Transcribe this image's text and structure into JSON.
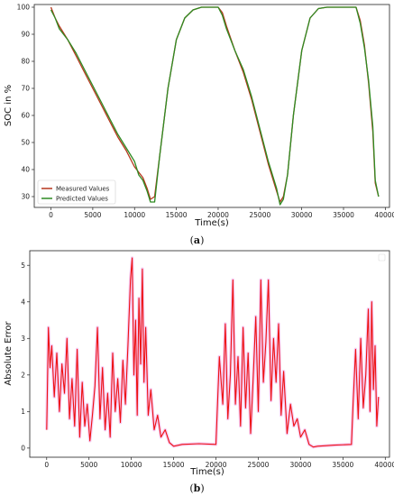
{
  "chart_data": [
    {
      "panel": "(a)",
      "type": "line",
      "xlabel": "Time(s)",
      "ylabel": "SOC in %",
      "xlim": [
        -2000,
        40500
      ],
      "ylim": [
        26,
        101
      ],
      "xticks": [
        0,
        5000,
        10000,
        15000,
        20000,
        25000,
        30000,
        35000,
        40000
      ],
      "yticks": [
        30,
        40,
        50,
        60,
        70,
        80,
        90,
        100
      ],
      "legend_position": "lower-left",
      "series": [
        {
          "name": "Measured Values",
          "color": "#b5361c",
          "x": [
            0,
            500,
            1000,
            2000,
            3000,
            4000,
            5000,
            6000,
            7000,
            8000,
            9000,
            10000,
            10500,
            11000,
            11500,
            11900,
            12400,
            13000,
            14000,
            15000,
            16000,
            17000,
            18000,
            19000,
            20000,
            20500,
            21000,
            22000,
            23000,
            24000,
            25000,
            26000,
            27000,
            27400,
            27800,
            28300,
            29000,
            30000,
            31000,
            32000,
            33000,
            34000,
            35000,
            36000,
            36500,
            37000,
            37500,
            38000,
            38500,
            38800,
            39200
          ],
          "y": [
            100,
            96,
            93,
            88,
            82,
            76,
            70,
            64,
            58,
            52,
            47,
            41,
            39,
            37,
            33,
            29,
            30,
            45,
            70,
            88,
            96,
            99,
            100,
            100,
            100,
            98,
            93,
            84,
            76,
            66,
            54,
            42,
            32,
            28,
            30,
            38,
            60,
            84,
            96,
            99.5,
            100,
            100,
            100,
            100,
            100,
            95,
            86,
            72,
            54,
            35,
            30
          ]
        },
        {
          "name": "Predicted Values",
          "color": "#2e8b22",
          "x": [
            0,
            500,
            1000,
            2000,
            3000,
            4000,
            5000,
            6000,
            7000,
            8000,
            9000,
            10000,
            10500,
            11000,
            11500,
            11900,
            12400,
            13000,
            14000,
            15000,
            16000,
            17000,
            18000,
            19000,
            20000,
            20500,
            21000,
            22000,
            23000,
            24000,
            25000,
            26000,
            27000,
            27400,
            27800,
            28300,
            29000,
            30000,
            31000,
            32000,
            33000,
            34000,
            35000,
            36000,
            36500,
            37000,
            37500,
            38000,
            38500,
            38800,
            39200
          ],
          "y": [
            99,
            96,
            92,
            88,
            83,
            77,
            71,
            65,
            59,
            53,
            48,
            43,
            38,
            36,
            32,
            28,
            28,
            45,
            70,
            88,
            96,
            99,
            100,
            100,
            100,
            97,
            92,
            84,
            77,
            67,
            55,
            43,
            33,
            27,
            29,
            38,
            60,
            84,
            96,
            99.5,
            100,
            100,
            100,
            100,
            100,
            94,
            85,
            73,
            56,
            36,
            30
          ]
        }
      ]
    },
    {
      "panel": "(b)",
      "type": "line",
      "xlabel": "Time(s)",
      "ylabel": "Absolute Error",
      "xlim": [
        -2000,
        40500
      ],
      "ylim": [
        -0.25,
        5.4
      ],
      "xticks": [
        0,
        5000,
        10000,
        15000,
        20000,
        25000,
        30000,
        35000,
        40000
      ],
      "yticks": [
        0,
        1,
        2,
        3,
        4,
        5
      ],
      "series": [
        {
          "color": "#ee1111",
          "x": [
            0,
            200,
            400,
            600,
            900,
            1200,
            1500,
            1800,
            2100,
            2400,
            2700,
            3000,
            3300,
            3600,
            3900,
            4200,
            4500,
            4800,
            5100,
            5400,
            5700,
            6000,
            6300,
            6600,
            6900,
            7200,
            7500,
            7800,
            8100,
            8400,
            8700,
            9000,
            9300,
            9600,
            9900,
            10100,
            10300,
            10500,
            10700,
            10900,
            11100,
            11300,
            11500,
            11700,
            12000,
            12300,
            12700,
            13100,
            13500,
            14000,
            14500,
            15000,
            16000,
            18000,
            20000,
            20400,
            20800,
            21100,
            21400,
            21700,
            22000,
            22300,
            22600,
            22900,
            23200,
            23500,
            23800,
            24100,
            24400,
            24700,
            25000,
            25300,
            25600,
            25900,
            26200,
            26500,
            26800,
            27100,
            27400,
            27700,
            28000,
            28400,
            28800,
            29200,
            29600,
            30000,
            30500,
            31000,
            31500,
            32000,
            34000,
            36000,
            36200,
            36500,
            36800,
            37100,
            37400,
            37700,
            38000,
            38200,
            38400,
            38600,
            38800,
            39000,
            39200
          ],
          "y": [
            0.5,
            3.3,
            2.2,
            2.8,
            1.4,
            2.6,
            1.0,
            2.3,
            1.5,
            3.0,
            0.8,
            1.9,
            0.6,
            2.7,
            0.3,
            1.8,
            0.6,
            1.2,
            0.2,
            0.9,
            1.7,
            3.3,
            0.8,
            2.2,
            0.5,
            1.5,
            0.3,
            2.6,
            1.0,
            1.9,
            0.7,
            2.4,
            1.2,
            2.8,
            4.6,
            5.2,
            2.0,
            3.5,
            0.9,
            4.1,
            2.3,
            4.9,
            1.8,
            3.3,
            0.9,
            1.6,
            0.5,
            0.9,
            0.3,
            0.5,
            0.15,
            0.05,
            0.1,
            0.12,
            0.1,
            2.5,
            1.2,
            3.4,
            0.8,
            2.0,
            4.6,
            1.2,
            2.5,
            0.6,
            3.3,
            1.1,
            2.6,
            0.4,
            1.9,
            3.6,
            1.0,
            4.6,
            1.8,
            2.9,
            4.6,
            1.3,
            3.0,
            1.8,
            3.4,
            0.9,
            2.1,
            0.4,
            1.2,
            0.6,
            0.8,
            0.3,
            0.5,
            0.1,
            0.03,
            0.05,
            0.08,
            0.1,
            1.2,
            2.7,
            0.8,
            3.0,
            1.1,
            2.0,
            3.8,
            1.0,
            4.0,
            1.6,
            2.8,
            0.6,
            1.4
          ]
        }
      ]
    }
  ]
}
